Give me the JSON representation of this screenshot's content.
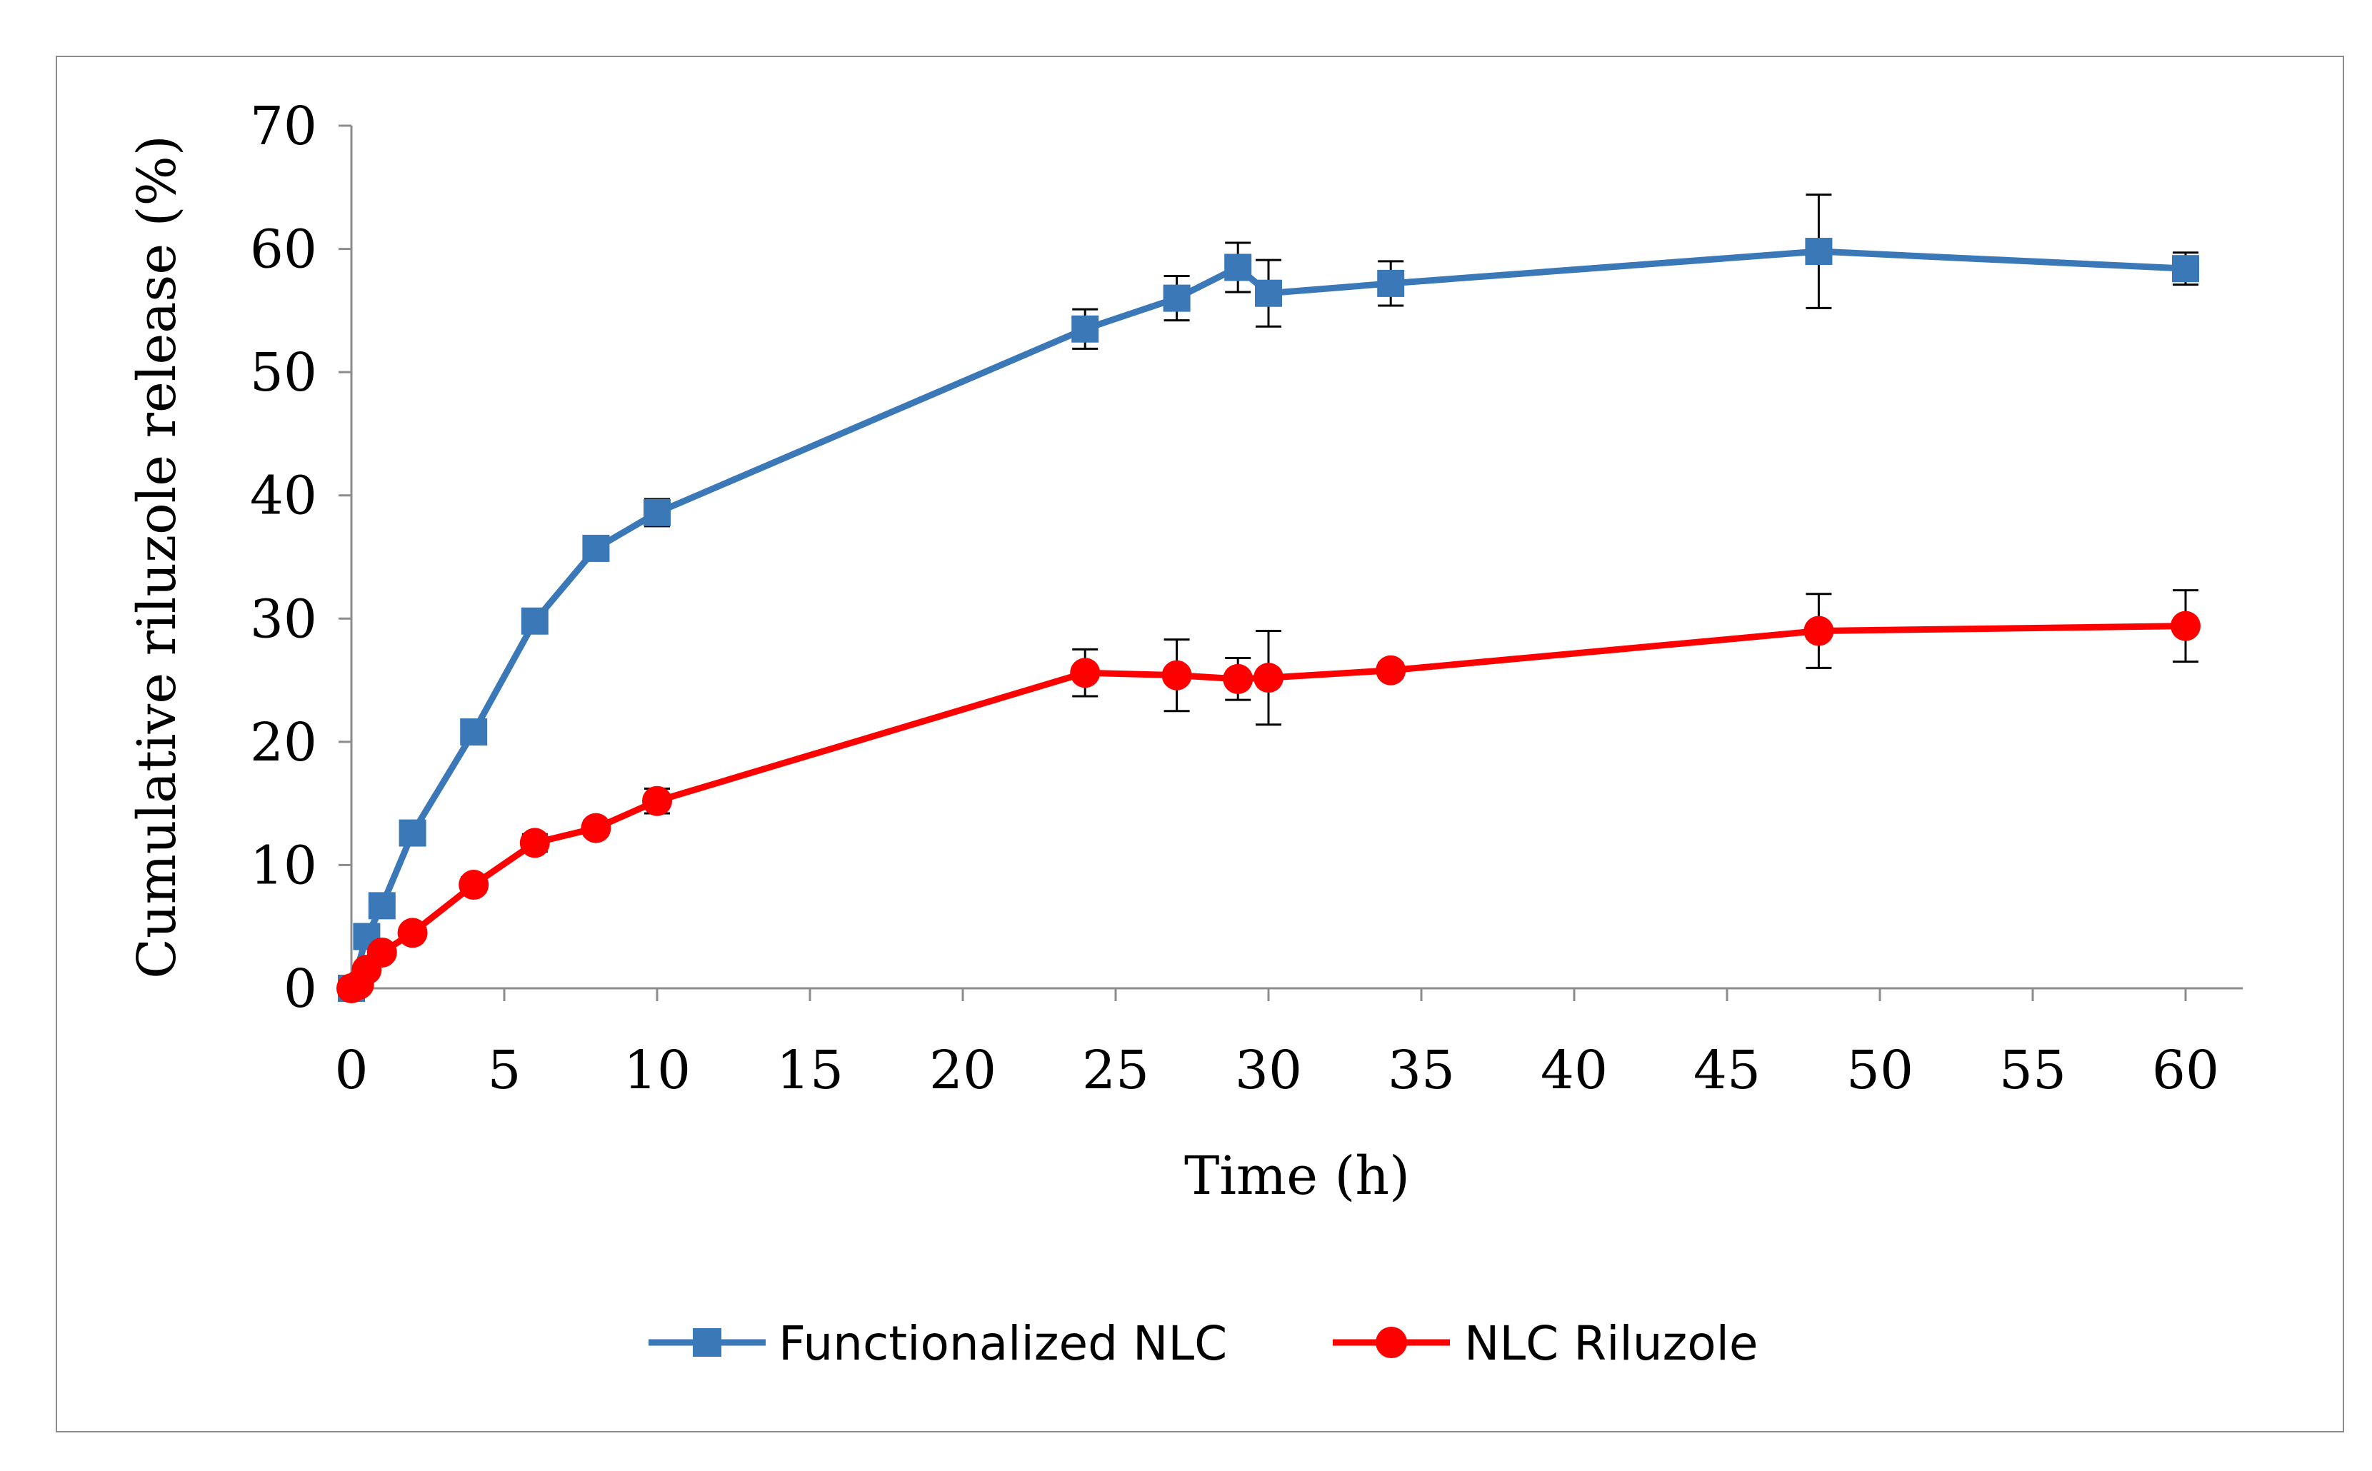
{
  "chart_data": {
    "type": "line",
    "title": "",
    "xlabel": "Time (h)",
    "ylabel": "Cumulative riluzole release (%)",
    "xlim": [
      0,
      60
    ],
    "ylim": [
      0,
      70
    ],
    "xticks": [
      0,
      5,
      10,
      15,
      20,
      25,
      30,
      35,
      40,
      45,
      50,
      55,
      60
    ],
    "yticks": [
      0,
      10,
      20,
      30,
      40,
      50,
      60,
      70
    ],
    "grid": false,
    "legend_position": "bottom",
    "series": [
      {
        "name": "Functionalized NLC",
        "color": "#3a78b8",
        "marker": "square",
        "x": [
          0,
          0.5,
          1,
          2,
          4,
          6,
          8,
          10,
          24,
          27,
          29,
          30,
          34,
          48,
          60
        ],
        "y": [
          0,
          4.2,
          6.7,
          12.6,
          20.8,
          29.8,
          35.7,
          38.6,
          53.5,
          56.0,
          58.5,
          56.4,
          57.2,
          59.8,
          58.4
        ],
        "err": [
          0,
          0.5,
          0.6,
          0.8,
          0.7,
          0.8,
          0.7,
          1.1,
          1.6,
          1.8,
          2.0,
          2.7,
          1.8,
          4.6,
          1.3
        ]
      },
      {
        "name": "NLC Riluzole",
        "color": "#ff0000",
        "marker": "circle",
        "x": [
          0,
          0.25,
          0.5,
          1,
          2,
          4,
          6,
          8,
          10,
          24,
          27,
          29,
          30,
          34,
          48,
          60
        ],
        "y": [
          0,
          0.3,
          1.5,
          2.9,
          4.5,
          8.4,
          11.8,
          13.0,
          15.2,
          25.6,
          25.4,
          25.1,
          25.2,
          25.8,
          29.0,
          29.4
        ],
        "err": [
          0,
          0.2,
          0.3,
          0.4,
          0.5,
          0.6,
          0.7,
          0.6,
          1.0,
          1.9,
          2.9,
          1.7,
          3.8,
          0.6,
          3.0,
          2.9
        ]
      }
    ]
  }
}
